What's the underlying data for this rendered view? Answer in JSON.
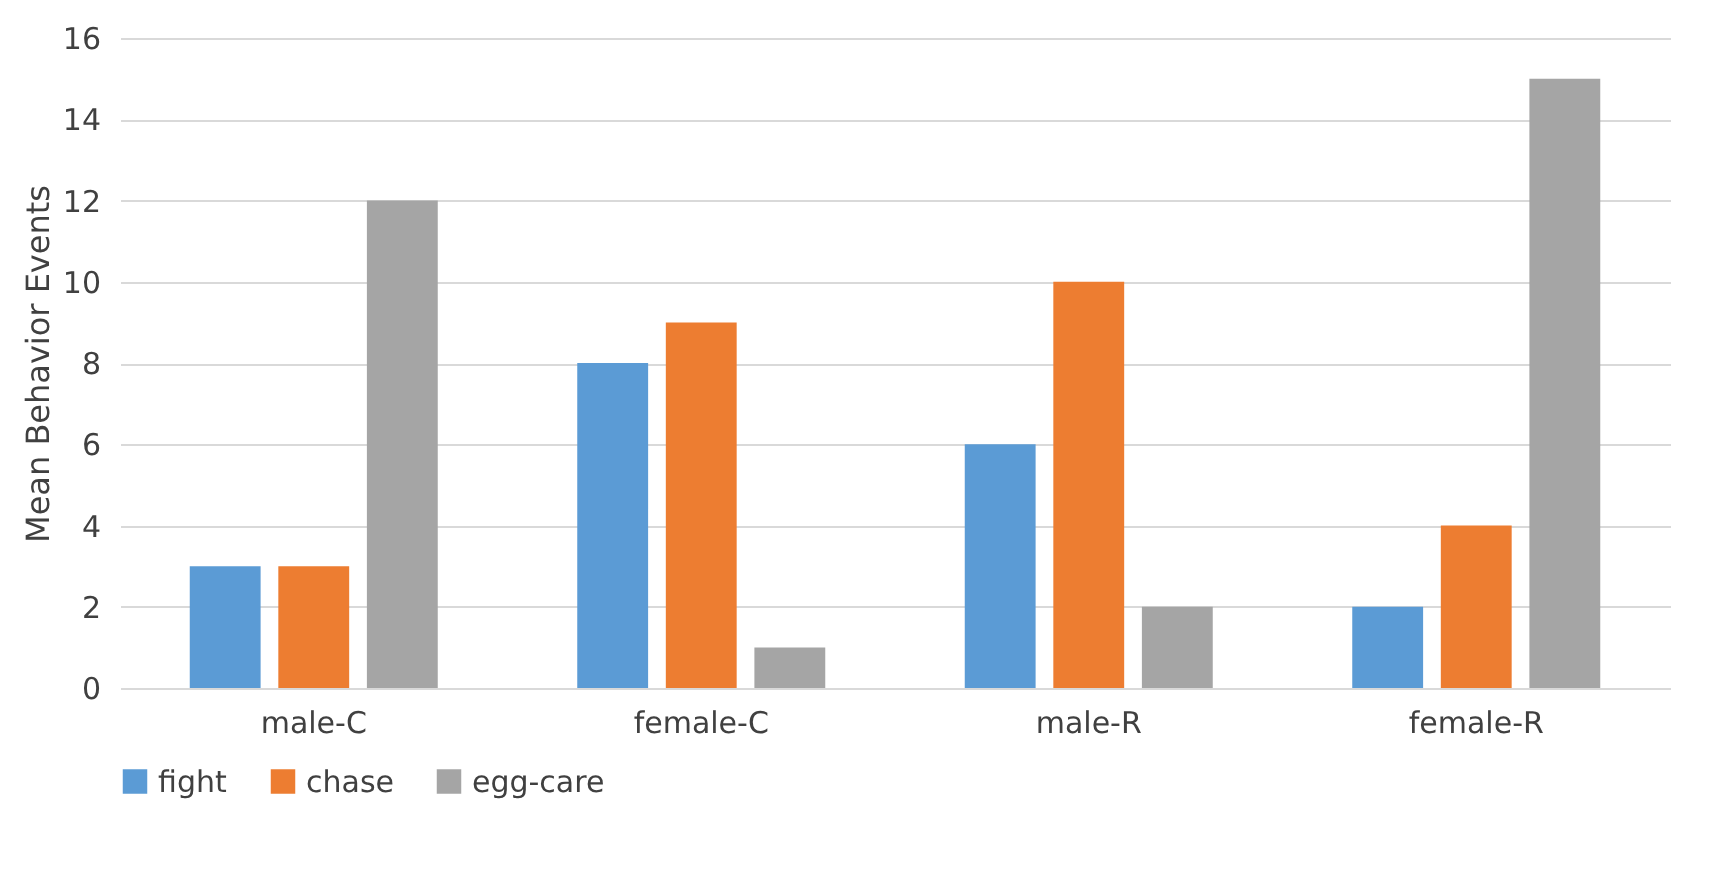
{
  "chart_data": {
    "type": "bar",
    "ylabel": "Mean Behavior Events",
    "categories": [
      "male-C",
      "female-C",
      "male-R",
      "female-R"
    ],
    "series": [
      {
        "name": "fight",
        "color": "#5b9bd5",
        "values": [
          3,
          8,
          6,
          2
        ]
      },
      {
        "name": "chase",
        "color": "#ed7d31",
        "values": [
          3,
          9,
          10,
          4
        ]
      },
      {
        "name": "egg-care",
        "color": "#a5a5a5",
        "values": [
          12,
          1,
          2,
          15
        ]
      }
    ],
    "ylim": [
      0,
      16
    ],
    "yticks": [
      0,
      2,
      4,
      6,
      8,
      10,
      12,
      14,
      16
    ],
    "grid": "y",
    "legend": "bottom"
  }
}
